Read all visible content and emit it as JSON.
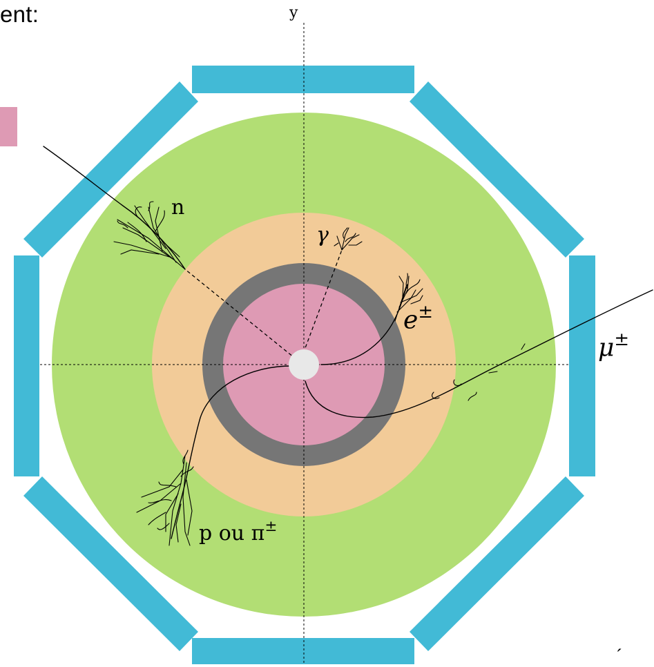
{
  "header": {
    "text_fragment": "ent:"
  },
  "axis": {
    "y_label": "y"
  },
  "particles": {
    "neutron": "n",
    "photon": "γ",
    "electron_base": "e",
    "electron_sup": "±",
    "muon_base": "μ",
    "muon_sup": "±",
    "hadron_base": "p ou π",
    "hadron_sup": "±"
  },
  "corner": {
    "mark": "´"
  },
  "colors": {
    "muon_chambers": "#42bad6",
    "hadronic_calorimeter": "#b2de74",
    "electromagnetic_calorimeter": "#f2cb98",
    "solenoid": "#767676",
    "tracker": "#de9ab4",
    "beam_pipe": "#e8e8e8",
    "background": "#ffffff",
    "ink": "#000000"
  },
  "icons": {
    "legend_swatch": "tracker-legend-swatch"
  }
}
